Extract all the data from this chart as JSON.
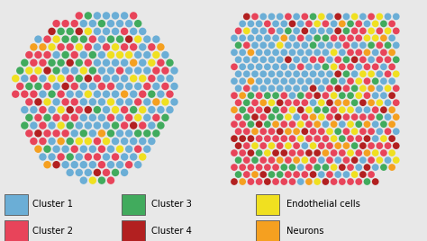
{
  "fig_width": 4.74,
  "fig_height": 2.68,
  "dpi": 100,
  "fig_bg": "#e8e8e8",
  "panel_gap_color": "#e0e0e0",
  "legend_items": [
    {
      "label": "Cluster 1",
      "color": "#6baed6"
    },
    {
      "label": "Cluster 2",
      "color": "#e8445a"
    },
    {
      "label": "Cluster 3",
      "color": "#41ab5d"
    },
    {
      "label": "Cluster 4",
      "color": "#b22020"
    },
    {
      "label": "Endothelial cells",
      "color": "#f0e020"
    },
    {
      "label": "Neurons",
      "color": "#f5a020"
    }
  ],
  "colors": [
    "#6baed6",
    "#e8445a",
    "#41ab5d",
    "#b22020",
    "#f0e020",
    "#f5a020"
  ]
}
